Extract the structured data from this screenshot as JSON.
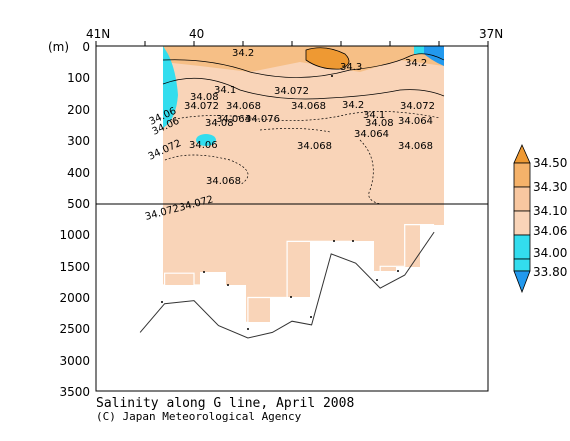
{
  "chart_data": {
    "type": "contour-section",
    "title": "Salinity along G line, April 2008",
    "credit": "(C) Japan Meteorological Agency",
    "y_unit": "(m)",
    "x_ticks": [
      "41N",
      "40",
      "37N"
    ],
    "y_ticks_upper": [
      0,
      100,
      200,
      300,
      400,
      500
    ],
    "y_ticks_lower": [
      1000,
      1500,
      2000,
      2500,
      3000,
      3500
    ],
    "colorbar": {
      "labels": [
        "34.50",
        "34.30",
        "34.10",
        "34.06",
        "34.00",
        "33.80"
      ],
      "colors": [
        "#ee9933",
        "#f5b26a",
        "#f8c7a0",
        "#f9d4b8",
        "#33ddee",
        "#2299ee"
      ]
    },
    "contour_labels": [
      "34.2",
      "34.3",
      "34.2",
      "34.1",
      "34.08",
      "34.072",
      "34.068",
      "34.068",
      "34.2",
      "34.1",
      "34.072",
      "34.076",
      "34.072",
      "34.06",
      "34.08",
      "34.064",
      "34.064",
      "34.068",
      "34.068",
      "34.06",
      "34.068",
      "34.072",
      "34.064",
      "34.08",
      "34.06",
      "34.072",
      "34.072"
    ],
    "series": [
      {
        "values": [
          {
            "lat": 40.55,
            "depth": 1800
          },
          {
            "lat": 40.3,
            "depth": 1800
          },
          {
            "lat": 40.3,
            "depth": 1610
          },
          {
            "lat": 40.0,
            "depth": 1610
          },
          {
            "lat": 40.0,
            "depth": 1800
          },
          {
            "lat": 39.75,
            "depth": 1800
          },
          {
            "lat": 39.75,
            "depth": 2400
          },
          {
            "lat": 39.45,
            "depth": 2400
          },
          {
            "lat": 39.45,
            "depth": 2000
          },
          {
            "lat": 39.05,
            "depth": 2000
          },
          {
            "lat": 39.05,
            "depth": 1100
          },
          {
            "lat": 38.35,
            "depth": 1100
          },
          {
            "lat": 38.35,
            "depth": 1600
          },
          {
            "lat": 38.1,
            "depth": 1600
          },
          {
            "lat": 38.1,
            "depth": 1500
          },
          {
            "lat": 37.85,
            "depth": 1500
          },
          {
            "lat": 37.85,
            "depth": 830
          },
          {
            "lat": 37.55,
            "depth": 830
          }
        ]
      },
      {
        "values": [
          {
            "lat": 40.55,
            "depth": 2560
          },
          {
            "lat": 40.3,
            "depth": 2100
          },
          {
            "lat": 40.0,
            "depth": 2050
          },
          {
            "lat": 39.75,
            "depth": 2450
          },
          {
            "lat": 39.45,
            "depth": 2650
          },
          {
            "lat": 39.2,
            "depth": 2560
          },
          {
            "lat": 39.0,
            "depth": 2380
          },
          {
            "lat": 38.8,
            "depth": 2440
          },
          {
            "lat": 38.6,
            "depth": 1300
          },
          {
            "lat": 38.35,
            "depth": 1450
          },
          {
            "lat": 38.1,
            "depth": 1850
          },
          {
            "lat": 37.85,
            "depth": 1640
          },
          {
            "lat": 37.55,
            "depth": 950
          }
        ]
      }
    ]
  }
}
